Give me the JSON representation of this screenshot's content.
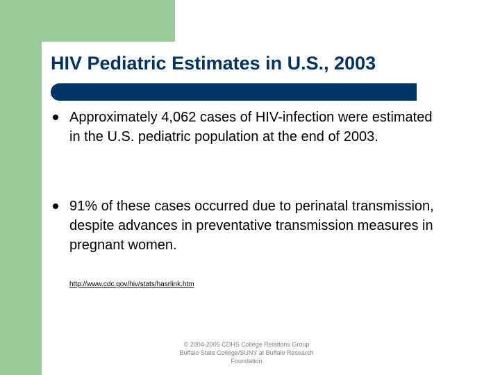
{
  "slide": {
    "title": "HIV Pediatric Estimates in U.S., 2003",
    "bullets": [
      "Approximately 4,062 cases of HIV-infection were estimated in the U.S. pediatric population at the end of 2003.",
      "91% of these cases occurred due to perinatal transmission, despite advances in preventative transmission measures in pregnant women."
    ],
    "source_link": "http://www.cdc.gov/hiv/stats/hasrlink.htm",
    "footer": {
      "line1": "© 2004-2005 CDHS College Relations Group",
      "line2": "Buffalo State College/SUNY at Buffalo Research",
      "line3": "Foundation"
    }
  },
  "colors": {
    "accent_green": "#99cc99",
    "title_navy": "#003366"
  }
}
